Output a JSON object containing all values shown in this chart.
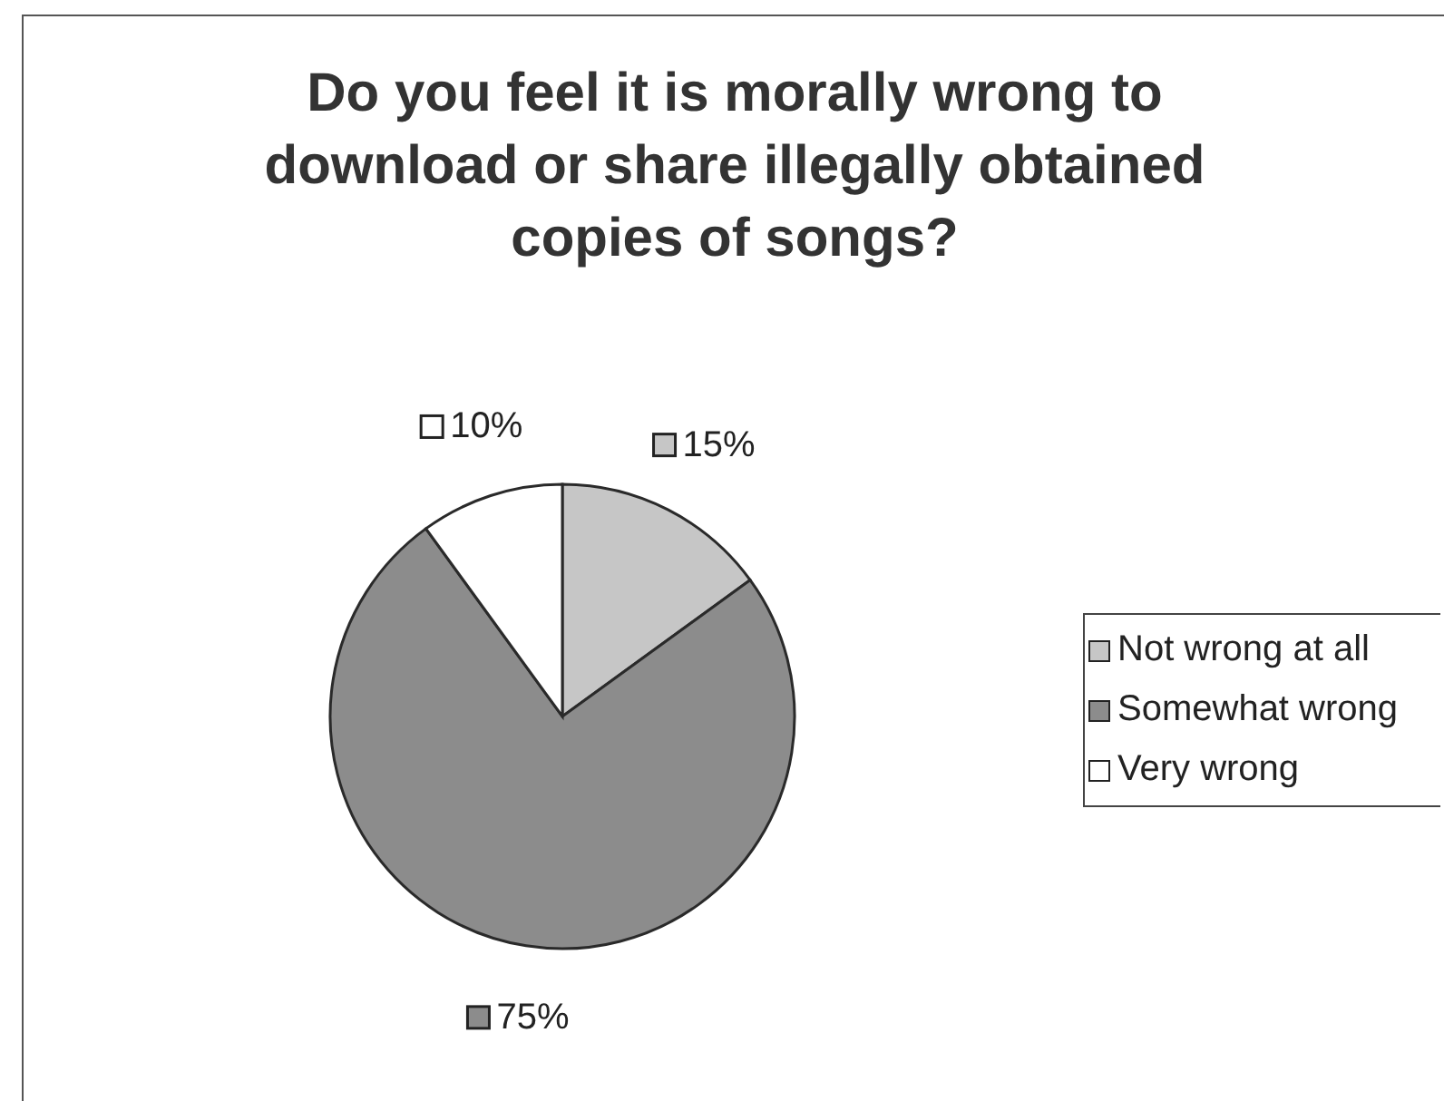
{
  "chart_data": {
    "type": "pie",
    "title": "Do you feel it is morally wrong to download or share illegally obtained copies of songs?",
    "categories": [
      "Not wrong at all",
      "Somewhat wrong",
      "Very wrong"
    ],
    "values": [
      15,
      75,
      10
    ],
    "colors": [
      "#c6c6c6",
      "#8c8c8c",
      "#ffffff"
    ],
    "value_labels": [
      "15%",
      "75%",
      "10%"
    ],
    "legend": "right"
  }
}
